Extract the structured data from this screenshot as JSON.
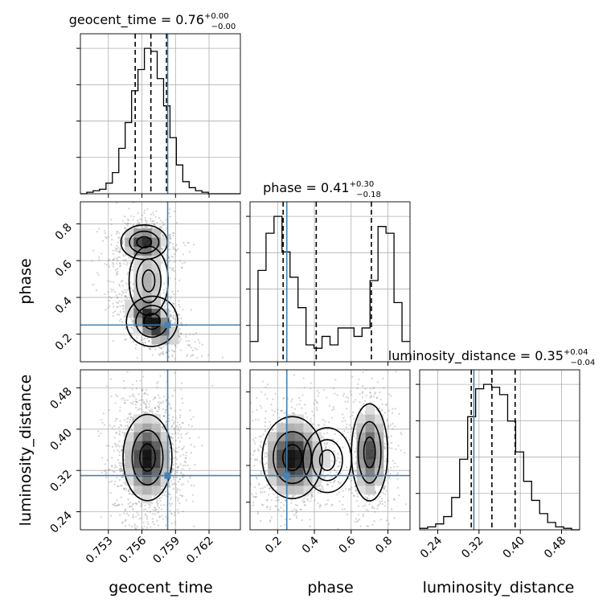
{
  "chart_data": {
    "type": "corner",
    "parameters": [
      "geocent_time",
      "phase",
      "luminosity_distance"
    ],
    "axis_labels": [
      "geocent_time",
      "phase",
      "luminosity_distance"
    ],
    "ranges": {
      "geocent_time": [
        0.7505,
        0.7648
      ],
      "phase": [
        0.05,
        0.92
      ],
      "luminosity_distance": [
        0.205,
        0.515
      ]
    },
    "ticks": {
      "geocent_time": [
        "0.753",
        "0.756",
        "0.759",
        "0.762"
      ],
      "phase": [
        "0.2",
        "0.4",
        "0.6",
        "0.8"
      ],
      "luminosity_distance": [
        "0.24",
        "0.32",
        "0.40",
        "0.48"
      ]
    },
    "truths": {
      "geocent_time": 0.7583,
      "phase": 0.25,
      "luminosity_distance": 0.31
    },
    "truth_color": "#4682b4",
    "summary": [
      {
        "parameter": "geocent_time",
        "name": "geocent_time",
        "median": "0.76",
        "plus": "+0.00",
        "minus": "−0.00"
      },
      {
        "parameter": "phase",
        "name": "phase",
        "median": "0.41",
        "plus": "+0.30",
        "minus": "−0.18"
      },
      {
        "parameter": "luminosity_distance",
        "name": "luminosity_distance",
        "median": "0.35",
        "plus": "+0.04",
        "minus": "−0.04"
      }
    ],
    "quantiles": {
      "geocent_time": [
        0.7554,
        0.7568,
        0.7582
      ],
      "phase": [
        0.23,
        0.41,
        0.71
      ],
      "luminosity_distance": [
        0.305,
        0.345,
        0.39
      ]
    },
    "histograms": {
      "geocent_time": [
        0,
        1,
        2,
        3,
        7,
        14,
        30,
        47,
        68,
        82,
        96,
        94,
        76,
        58,
        37,
        19,
        8,
        4,
        2,
        1,
        0,
        0,
        0,
        0,
        0
      ],
      "phase": [
        12,
        54,
        76,
        86,
        65,
        50,
        32,
        10,
        8,
        15,
        10,
        20,
        20,
        15,
        20,
        48,
        80,
        76,
        35,
        12
      ],
      "luminosity_distance": [
        1,
        2,
        4,
        9,
        22,
        48,
        77,
        96,
        99,
        97,
        92,
        74,
        53,
        33,
        20,
        11,
        5,
        2,
        1,
        0
      ]
    },
    "blobs": [
      {
        "x": 0.7562,
        "y": 0.7,
        "sx": 0.00095,
        "sy": 0.045,
        "w": 0.38
      },
      {
        "x": 0.7569,
        "y": 0.27,
        "sx": 0.00105,
        "sy": 0.065,
        "w": 0.47,
        "r": -0.55
      },
      {
        "x": 0.7566,
        "y": 0.49,
        "sx": 0.0008,
        "sy": 0.09,
        "w": 0.15
      }
    ],
    "distance_blobs": [
      {
        "x": 0.7565,
        "y": 0.345,
        "sx": 0.001,
        "sy": 0.04,
        "w": 1.0
      }
    ],
    "phase_distance_blobs": [
      {
        "x": 0.28,
        "y": 0.345,
        "sx": 0.075,
        "sy": 0.038,
        "w": 0.55
      },
      {
        "x": 0.7,
        "y": 0.355,
        "sx": 0.045,
        "sy": 0.045,
        "w": 0.4
      },
      {
        "x": 0.47,
        "y": 0.34,
        "sx": 0.06,
        "sy": 0.03,
        "w": 0.05
      }
    ]
  }
}
